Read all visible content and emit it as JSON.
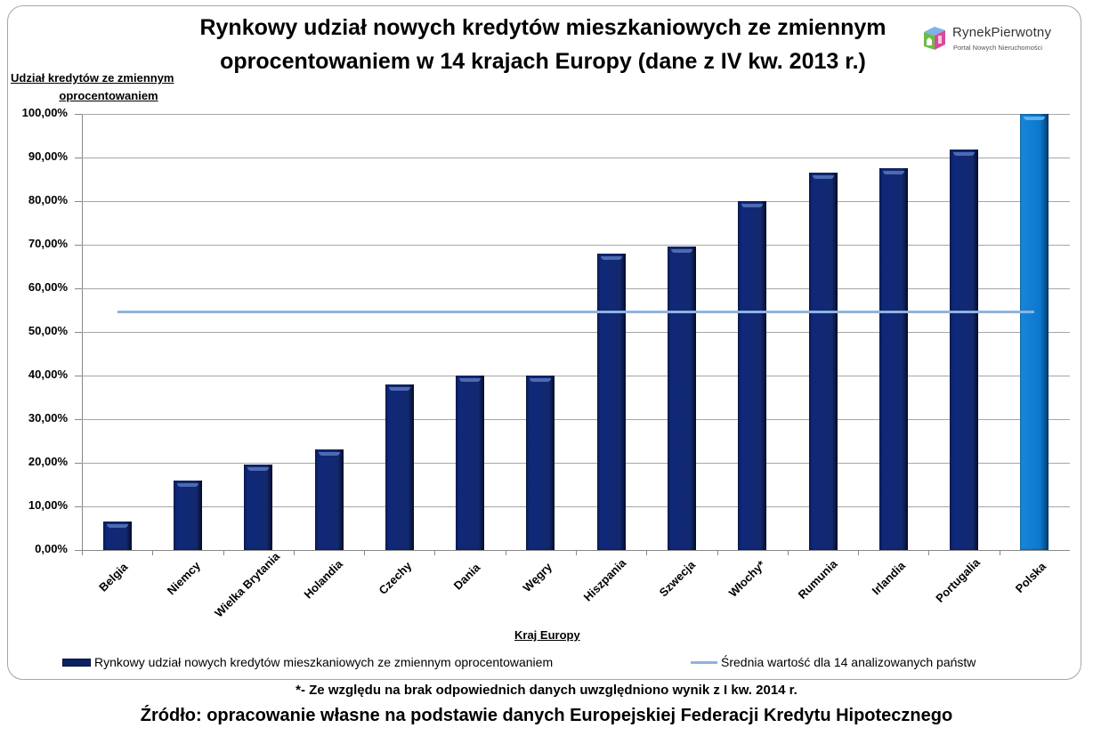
{
  "header": {
    "title_line1": "Rynkowy udział nowych kredytów mieszkaniowych ze zmiennym",
    "title_line2": "oprocentowaniem w 14 krajach Europy (dane z IV kw. 2013 r.)"
  },
  "logo": {
    "brand": "RynekPierwotny",
    "tagline": "Portal Nowych Nieruchomości",
    "icon": "house-cube-icon"
  },
  "axes": {
    "ylabel_line1": "Udział kredytów ze zmiennym",
    "ylabel_line2": "oprocentowaniem",
    "xlabel": "Kraj Europy",
    "yticks": [
      "0,00%",
      "10,00%",
      "20,00%",
      "30,00%",
      "40,00%",
      "50,00%",
      "60,00%",
      "70,00%",
      "80,00%",
      "90,00%",
      "100,00%"
    ]
  },
  "legend": {
    "series_bar": "Rynkowy udział nowych kredytów mieszkaniowych ze zmiennym oprocentowaniem",
    "series_line": "Średnia wartość dla 14 analizowanych państw"
  },
  "footer": {
    "note": "*- Ze względu na brak odpowiednich danych uwzględniono wynik z I kw. 2014 r.",
    "source": "Źródło: opracowanie własne na podstawie danych Europejskiej Federacji Kredytu Hipotecznego"
  },
  "colors": {
    "bar": "#12296f",
    "bar_highlight": "#0b78cf",
    "average_line": "#8fb2e0",
    "grid": "#a6a6a6"
  },
  "chart_data": {
    "type": "bar",
    "title": "Rynkowy udział nowych kredytów mieszkaniowych ze zmiennym oprocentowaniem w 14 krajach Europy (dane z IV kw. 2013 r.)",
    "xlabel": "Kraj Europy",
    "ylabel": "Udział kredytów ze zmiennym oprocentowaniem",
    "ylim": [
      0,
      100
    ],
    "y_unit": "%",
    "grid": true,
    "legend_position": "bottom",
    "categories": [
      "Belgia",
      "Niemcy",
      "Wielka Brytania",
      "Holandia",
      "Czechy",
      "Dania",
      "Węgry",
      "Hiszpania",
      "Szwecja",
      "Włochy*",
      "Rumunia",
      "Irlandia",
      "Portugalia",
      "Polska"
    ],
    "series": [
      {
        "name": "Rynkowy udział nowych kredytów mieszkaniowych ze zmiennym oprocentowaniem",
        "type": "bar",
        "values": [
          6.6,
          15.9,
          19.5,
          23.0,
          37.9,
          40.0,
          40.0,
          68.0,
          69.5,
          80.0,
          86.5,
          87.6,
          91.8,
          100.0
        ],
        "highlight": "Polska"
      },
      {
        "name": "Średnia wartość dla 14 analizowanych państw",
        "type": "line",
        "values": [
          54.7,
          54.7,
          54.7,
          54.7,
          54.7,
          54.7,
          54.7,
          54.7,
          54.7,
          54.7,
          54.7,
          54.7,
          54.7,
          54.7
        ]
      }
    ],
    "annotations": [
      "*- Ze względu na brak odpowiednich danych uwzględniono wynik z I kw. 2014 r."
    ]
  }
}
